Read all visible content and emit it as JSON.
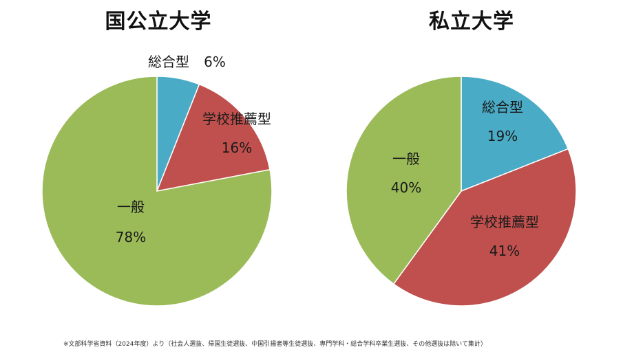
{
  "chart_data": [
    {
      "type": "pie",
      "title": "国公立大学",
      "slices": [
        {
          "label": "総合型",
          "value": 6,
          "value_label": "6%",
          "color": "#4aabc6"
        },
        {
          "label": "学校推薦型",
          "value": 16,
          "value_label": "16%",
          "color": "#c0504d"
        },
        {
          "label": "一般",
          "value": 78,
          "value_label": "78%",
          "color": "#9bbb59"
        }
      ]
    },
    {
      "type": "pie",
      "title": "私立大学",
      "slices": [
        {
          "label": "総合型",
          "value": 19,
          "value_label": "19%",
          "color": "#4aabc6"
        },
        {
          "label": "学校推薦型",
          "value": 41,
          "value_label": "41%",
          "color": "#c0504d"
        },
        {
          "label": "一般",
          "value": 40,
          "value_label": "40%",
          "color": "#9bbb59"
        }
      ]
    }
  ],
  "footnote": "※文部科学省資料（2024年度）より（社会人選抜、帰国生徒選抜、中国引揚者等生徒選抜、専門学科・総合学科卒業生選抜、その他選抜は除いて集計）"
}
